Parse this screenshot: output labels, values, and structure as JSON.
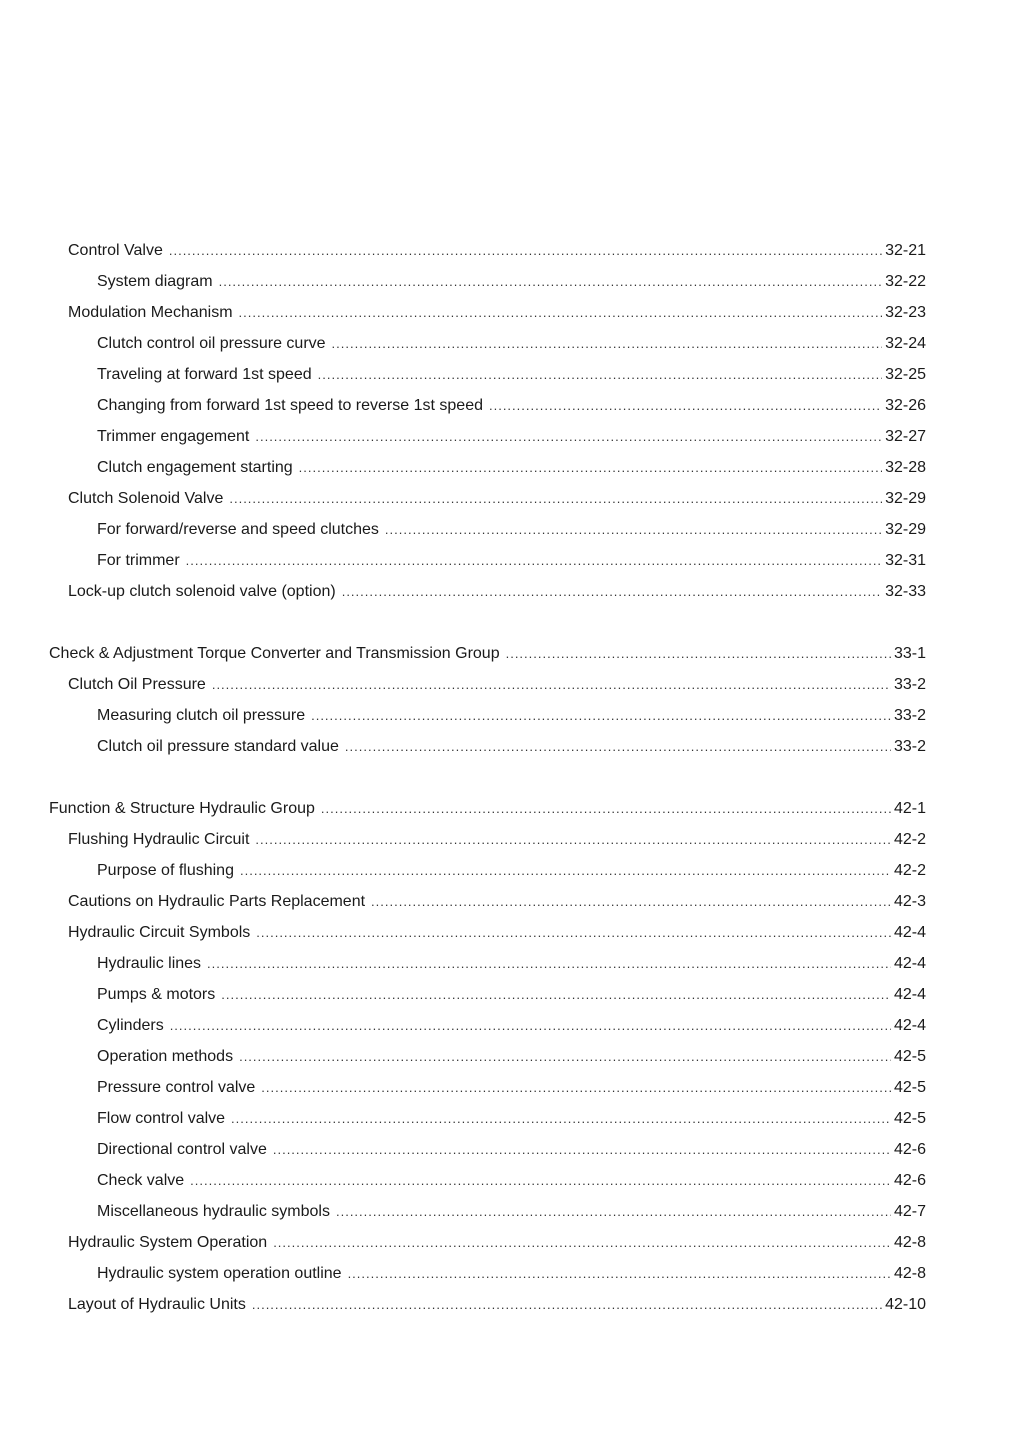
{
  "toc": [
    {
      "level": 1,
      "title": "Control Valve",
      "page": "32-21"
    },
    {
      "level": 2,
      "title": "System diagram",
      "page": "32-22"
    },
    {
      "level": 1,
      "title": "Modulation Mechanism",
      "page": "32-23"
    },
    {
      "level": 2,
      "title": "Clutch control oil pressure curve",
      "page": "32-24"
    },
    {
      "level": 2,
      "title": "Traveling at forward 1st speed",
      "page": "32-25"
    },
    {
      "level": 2,
      "title": "Changing from forward 1st speed to reverse 1st speed",
      "page": "32-26"
    },
    {
      "level": 2,
      "title": "Trimmer engagement",
      "page": "32-27"
    },
    {
      "level": 2,
      "title": "Clutch engagement starting",
      "page": "32-28"
    },
    {
      "level": 1,
      "title": "Clutch Solenoid Valve",
      "page": "32-29"
    },
    {
      "level": 2,
      "title": "For forward/reverse and speed clutches",
      "page": "32-29"
    },
    {
      "level": 2,
      "title": "For trimmer",
      "page": "32-31"
    },
    {
      "level": 1,
      "title": "Lock-up clutch solenoid valve (option)",
      "page": "32-33"
    },
    null,
    {
      "level": 0,
      "title": "Check & Adjustment Torque Converter and Transmission Group",
      "page": "33-1"
    },
    {
      "level": 1,
      "title": "Clutch Oil Pressure",
      "page": "33-2"
    },
    {
      "level": 2,
      "title": "Measuring clutch oil pressure",
      "page": "33-2"
    },
    {
      "level": 2,
      "title": "Clutch oil pressure standard value",
      "page": "33-2"
    },
    null,
    {
      "level": 0,
      "title": "Function & Structure Hydraulic Group",
      "page": "42-1"
    },
    {
      "level": 1,
      "title": "Flushing Hydraulic Circuit",
      "page": "42-2"
    },
    {
      "level": 2,
      "title": "Purpose of flushing",
      "page": "42-2"
    },
    {
      "level": 1,
      "title": "Cautions on Hydraulic Parts Replacement",
      "page": "42-3"
    },
    {
      "level": 1,
      "title": "Hydraulic Circuit Symbols",
      "page": "42-4"
    },
    {
      "level": 2,
      "title": "Hydraulic lines",
      "page": "42-4"
    },
    {
      "level": 2,
      "title": "Pumps & motors",
      "page": "42-4"
    },
    {
      "level": 2,
      "title": "Cylinders",
      "page": "42-4"
    },
    {
      "level": 2,
      "title": "Operation methods",
      "page": "42-5"
    },
    {
      "level": 2,
      "title": "Pressure control valve",
      "page": "42-5"
    },
    {
      "level": 2,
      "title": "Flow control valve",
      "page": "42-5"
    },
    {
      "level": 2,
      "title": "Directional control valve",
      "page": "42-6"
    },
    {
      "level": 2,
      "title": "Check valve",
      "page": "42-6"
    },
    {
      "level": 2,
      "title": "Miscellaneous hydraulic symbols",
      "page": "42-7"
    },
    {
      "level": 1,
      "title": "Hydraulic System Operation",
      "page": "42-8"
    },
    {
      "level": 2,
      "title": "Hydraulic system operation outline",
      "page": "42-8"
    },
    {
      "level": 1,
      "title": "Layout of Hydraulic Units",
      "page": "42-10"
    }
  ]
}
